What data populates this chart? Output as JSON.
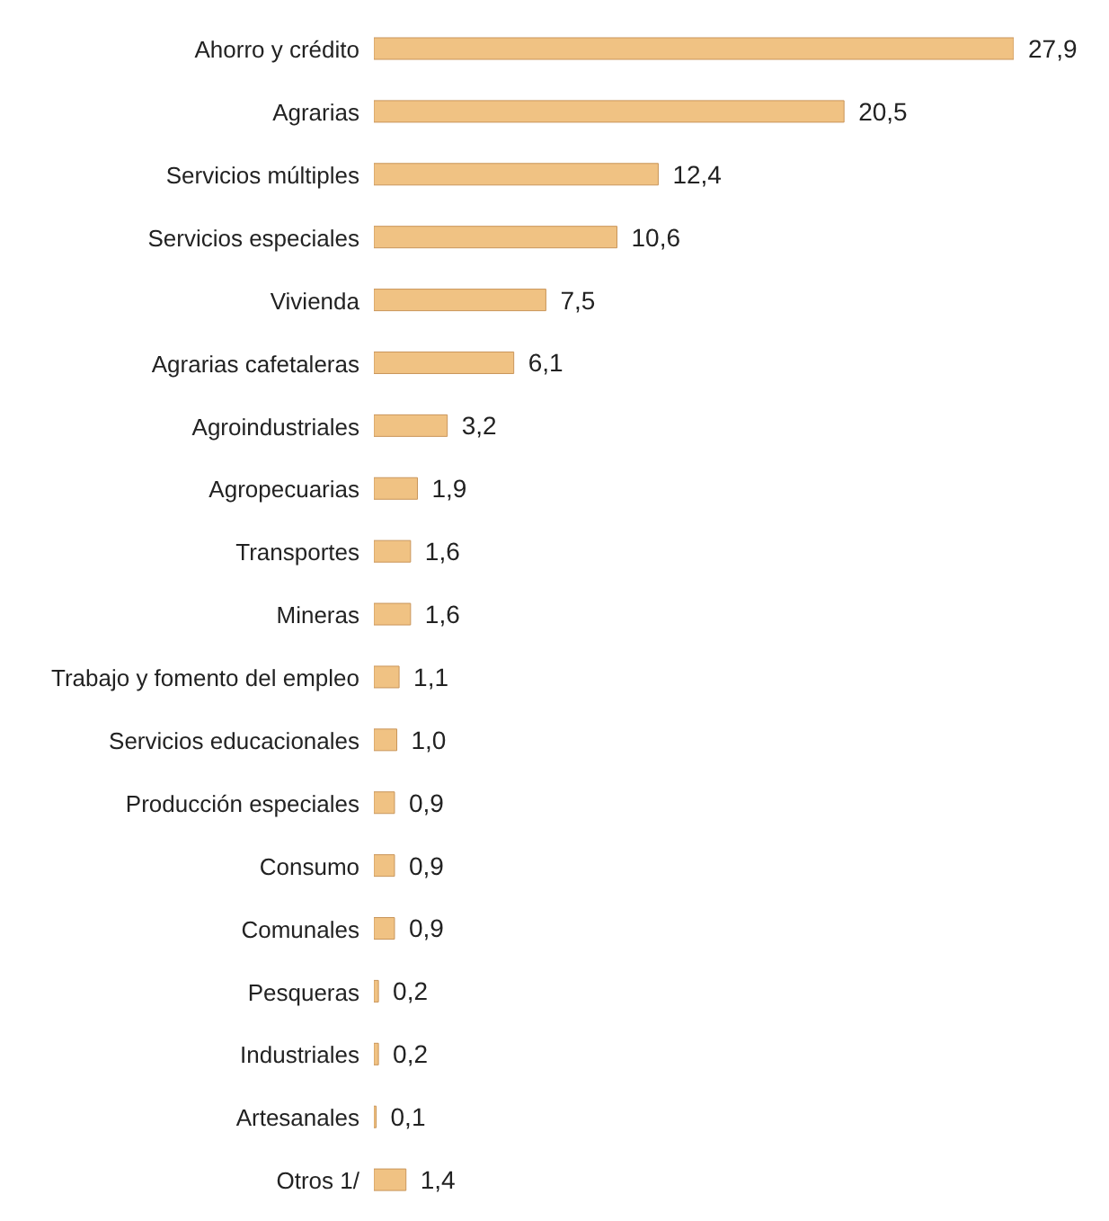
{
  "chart_data": {
    "type": "bar",
    "orientation": "horizontal",
    "categories": [
      "Ahorro y crédito",
      "Agrarias",
      "Servicios múltiples",
      "Servicios especiales",
      "Vivienda",
      "Agrarias cafetaleras",
      "Agroindustriales",
      "Agropecuarias",
      "Transportes",
      "Mineras",
      "Trabajo y fomento del empleo",
      "Servicios educacionales",
      "Producción especiales",
      "Consumo",
      "Comunales",
      "Pesqueras",
      "Industriales",
      "Artesanales",
      "Otros 1/"
    ],
    "values": [
      27.9,
      20.5,
      12.4,
      10.6,
      7.5,
      6.1,
      3.2,
      1.9,
      1.6,
      1.6,
      1.1,
      1.0,
      0.9,
      0.9,
      0.9,
      0.2,
      0.2,
      0.1,
      1.4
    ],
    "value_labels": [
      "27,9",
      "20,5",
      "12,4",
      "10,6",
      "7,5",
      "6,1",
      "3,2",
      "1,9",
      "1,6",
      "1,6",
      "1,1",
      "1,0",
      "0,9",
      "0,9",
      "0,9",
      "0,2",
      "0,2",
      "0,1",
      "1,4"
    ],
    "color": "#f0c283",
    "grid": false,
    "legend": false
  }
}
